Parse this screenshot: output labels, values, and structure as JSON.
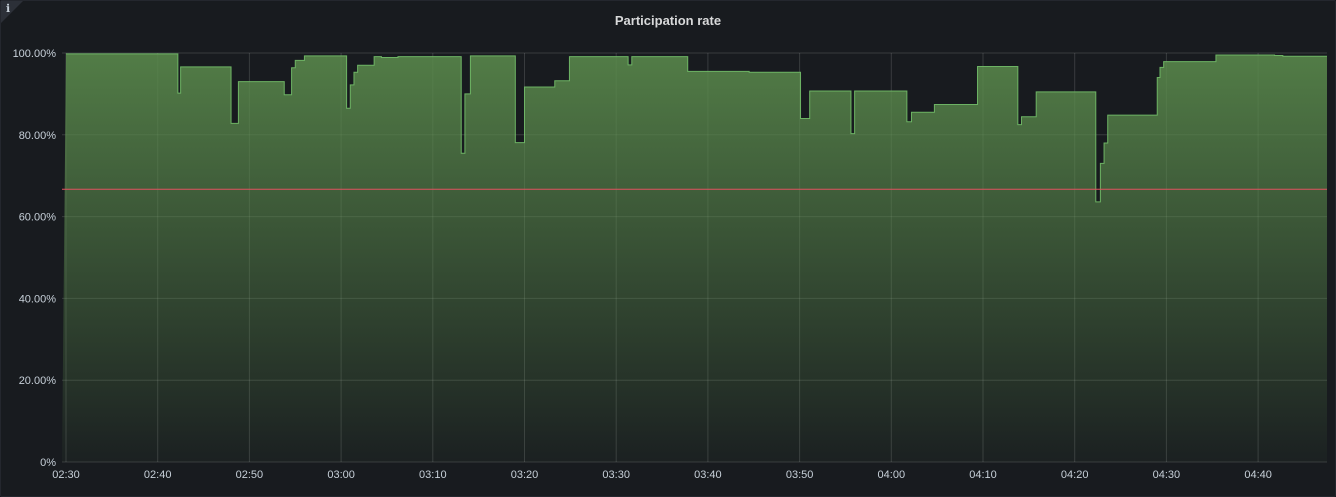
{
  "panel": {
    "title": "Participation rate",
    "info_icon": "info-icon"
  },
  "chart_data": {
    "type": "area",
    "title": "Participation rate",
    "xlabel": "",
    "ylabel": "",
    "x_range": [
      "02:30",
      "04:48"
    ],
    "ylim": [
      0,
      100
    ],
    "grid": true,
    "legend": "none",
    "x_ticks": [
      "02:30",
      "02:40",
      "02:50",
      "03:00",
      "03:10",
      "03:20",
      "03:30",
      "03:40",
      "03:50",
      "04:00",
      "04:10",
      "04:20",
      "04:30",
      "04:40"
    ],
    "y_ticks": [
      "0%",
      "20.00%",
      "40.00%",
      "60.00%",
      "80.00%",
      "100.00%"
    ],
    "threshold": {
      "value": 66.7,
      "color": "#e0525f"
    },
    "series": [
      {
        "color": "#73bf69",
        "interpolation": "step",
        "points": [
          [
            "02:30",
            99.8
          ],
          [
            "02:42.2",
            90.2
          ],
          [
            "02:42.5",
            96.6
          ],
          [
            "02:48",
            82.8
          ],
          [
            "02:48.8",
            93.0
          ],
          [
            "02:53.8",
            89.8
          ],
          [
            "02:54.6",
            96.4
          ],
          [
            "02:55",
            98.2
          ],
          [
            "02:56",
            99.3
          ],
          [
            "03:00.6",
            86.5
          ],
          [
            "03:01",
            92.2
          ],
          [
            "03:01.4",
            95.3
          ],
          [
            "03:01.8",
            97.0
          ],
          [
            "03:03.6",
            99.1
          ],
          [
            "03:04.4",
            98.9
          ],
          [
            "03:06.2",
            99.1
          ],
          [
            "03:13.1",
            75.5
          ],
          [
            "03:13.5",
            90.0
          ],
          [
            "03:14.1",
            99.3
          ],
          [
            "03:19",
            78.1
          ],
          [
            "03:20",
            91.7
          ],
          [
            "03:23.3",
            93.2
          ],
          [
            "03:24.9",
            99.1
          ],
          [
            "03:31.3",
            97.1
          ],
          [
            "03:31.7",
            99.1
          ],
          [
            "03:37.8",
            95.5
          ],
          [
            "03:44.5",
            95.3
          ],
          [
            "03:45",
            95.3
          ],
          [
            "03:50.1",
            84.0
          ],
          [
            "03:51.1",
            90.7
          ],
          [
            "03:55.6",
            80.3
          ],
          [
            "03:56",
            90.7
          ],
          [
            "04:01.7",
            83.2
          ],
          [
            "04:02.2",
            85.5
          ],
          [
            "04:04.7",
            87.4
          ],
          [
            "04:09.4",
            96.7
          ],
          [
            "04:13.8",
            82.5
          ],
          [
            "04:14.2",
            84.4
          ],
          [
            "04:15.8",
            90.5
          ],
          [
            "04:22.3",
            63.6
          ],
          [
            "04:22.8",
            73.0
          ],
          [
            "04:23.2",
            78.0
          ],
          [
            "04:23.6",
            84.8
          ],
          [
            "04:29",
            94.0
          ],
          [
            "04:29.3",
            96.5
          ],
          [
            "04:29.7",
            97.9
          ],
          [
            "04:35.4",
            99.5
          ],
          [
            "04:41.8",
            99.4
          ],
          [
            "04:42.7",
            99.2
          ],
          [
            "04:48",
            99.2
          ]
        ]
      }
    ]
  }
}
